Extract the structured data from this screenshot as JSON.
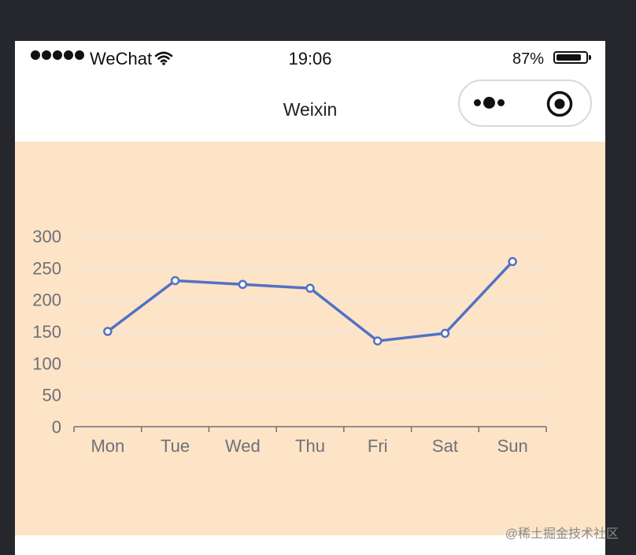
{
  "status_bar": {
    "carrier": "WeChat",
    "time": "19:06",
    "battery_percent": "87%",
    "battery_level": 0.87,
    "signal_icon": "signal-dots-icon",
    "wifi_icon": "wifi-icon",
    "battery_icon": "battery-icon"
  },
  "nav_bar": {
    "title": "Weixin",
    "more_icon": "more-dots-icon",
    "close_icon": "target-circle-icon"
  },
  "chart_data": {
    "type": "line",
    "categories": [
      "Mon",
      "Tue",
      "Wed",
      "Thu",
      "Fri",
      "Sat",
      "Sun"
    ],
    "series": [
      {
        "values": [
          150,
          230,
          224,
          218,
          135,
          147,
          260
        ],
        "color": "#5470c6"
      }
    ],
    "y_ticks": [
      "0",
      "50",
      "100",
      "150",
      "200",
      "250",
      "300"
    ],
    "ylim": [
      0,
      300
    ],
    "grid": true,
    "background": "#fde4c6",
    "grid_color": "#e6e6e6",
    "axis_color": "#6e7079"
  },
  "watermark": "@稀土掘金技术社区"
}
